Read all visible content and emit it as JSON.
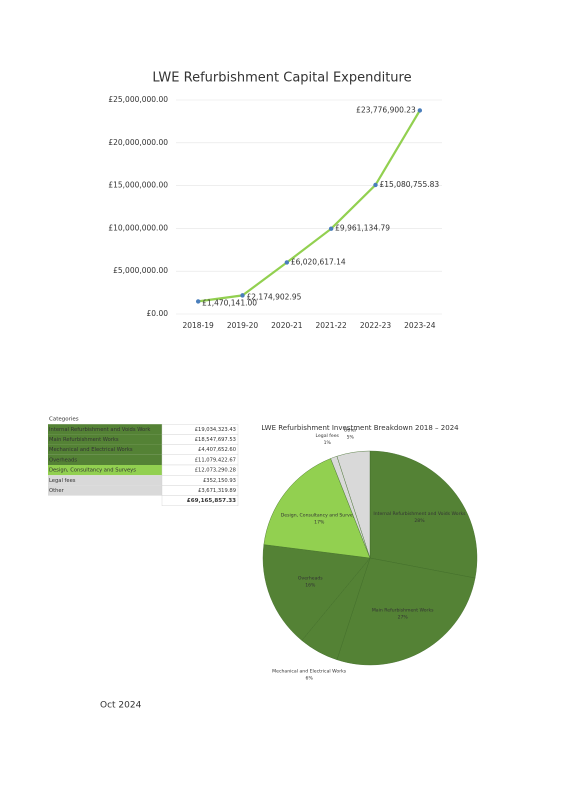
{
  "chart_data": [
    {
      "type": "line",
      "title": "LWE Refurbishment Capital Expenditure",
      "categories": [
        "2018-19",
        "2019-20",
        "2020-21",
        "2021-22",
        "2022-23",
        "2023-24"
      ],
      "values": [
        1470141.0,
        2174902.95,
        6020617.14,
        9961134.79,
        15080755.83,
        23776900.23
      ],
      "value_labels": [
        "£1,470,141.00",
        "£2,174,902.95",
        "£6,020,617.14",
        "£9,961,134.79",
        "£15,080,755.83",
        "£23,776,900.23"
      ],
      "color": "#92d050",
      "marker_color": "#4a7ebb",
      "ylim": [
        0,
        25000000
      ],
      "yticks": [
        {
          "value": 0,
          "label": "£0.00"
        },
        {
          "value": 5000000,
          "label": "£5,000,000.00"
        },
        {
          "value": 10000000,
          "label": "£10,000,000.00"
        },
        {
          "value": 15000000,
          "label": "£15,000,000.00"
        },
        {
          "value": 20000000,
          "label": "£20,000,000.00"
        },
        {
          "value": 25000000,
          "label": "£25,000,000.00"
        }
      ],
      "grid": true
    },
    {
      "type": "pie",
      "title": "LWE Refurbishment Investment Breakdown 2018 – 2024",
      "categories": [
        "Internal Refurbishment and Voids Works",
        "Main Refurbishment Works",
        "Mechanical and Electrical Works",
        "Overheads",
        "Design, Consultancy and Surveys",
        "Legal fees",
        "Other"
      ],
      "values": [
        28,
        27,
        6,
        16,
        17,
        1,
        5
      ],
      "value_labels": [
        "28%",
        "27%",
        "6%",
        "16%",
        "17%",
        "1%",
        "5%"
      ],
      "colors": [
        "#548235",
        "#548235",
        "#548235",
        "#548235",
        "#92d050",
        "#d9d9d9",
        "#d9d9d9"
      ]
    }
  ],
  "table": {
    "header": "Categories",
    "rows": [
      [
        "Internal Refurbishment and Voids Work",
        "£19,034,323.43"
      ],
      [
        "Main Refurbishment Works",
        "£18,547,697.53"
      ],
      [
        "Mechanical and Electrical Works",
        "£4,407,652.60"
      ],
      [
        "Overheads",
        "£11,079,422.67"
      ],
      [
        "Design, Consultancy and Surveys",
        "£12,073,290.28"
      ],
      [
        "Legal fees",
        "£352,150.93"
      ],
      [
        "Other",
        "£3,671,319.89"
      ]
    ],
    "total": "£69,165,857.33"
  },
  "footer": "Oct 2024"
}
